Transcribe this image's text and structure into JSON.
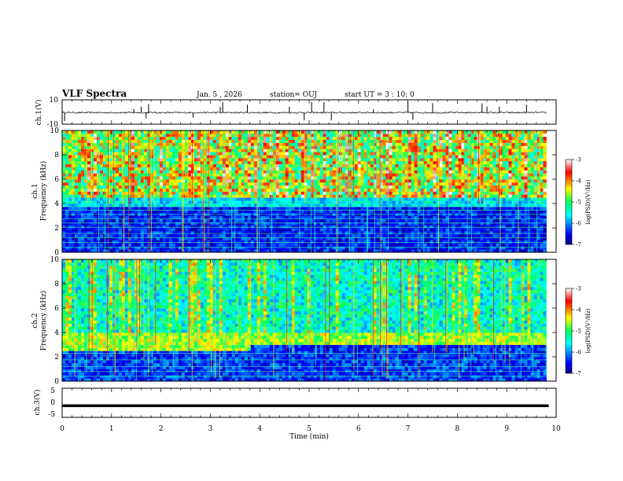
{
  "header": {
    "title": "VLF Spectra",
    "date": "Jan. 5 , 2026",
    "station": "station= OUJ",
    "start": "start UT = 3 : 10: 0"
  },
  "chart_data": [
    {
      "type": "line",
      "panel": "ch1-waveform",
      "ylabel": "ch.1(V)",
      "ylim": [
        -10,
        10
      ],
      "yticks": [
        "10",
        "-10"
      ],
      "xlim": [
        0,
        10
      ],
      "baseline": -0.5,
      "noise_amplitude": 0.6,
      "spike_times_min": [
        0.05,
        1.45,
        1.6,
        1.7,
        1.75,
        2.65,
        3.2,
        3.25,
        3.75,
        4.6,
        4.9,
        5.05,
        5.3,
        5.45,
        6.3,
        7.0,
        7.1,
        7.5,
        8.5,
        8.6,
        8.85,
        9.4
      ]
    },
    {
      "type": "heatmap",
      "panel": "ch1-spectrogram",
      "ylabel": "ch.1",
      "ylabel2": "Frequency (kHz)",
      "ylim": [
        0,
        10
      ],
      "yticks": [
        "0",
        "2",
        "4",
        "6",
        "8",
        "10"
      ],
      "xlim": [
        0,
        9.8
      ],
      "colorbar": {
        "label": "log(PSD)(V²/Hz)",
        "range": [
          -7,
          -3
        ],
        "ticks": [
          "-3",
          "-4",
          "-5",
          "-6",
          "-7"
        ]
      },
      "high_band_start_khz": 4.5,
      "hum_lines_khz": [
        0.4,
        0.8,
        1.2,
        1.55,
        2.05,
        2.4,
        2.75,
        3.1,
        3.45,
        3.75
      ]
    },
    {
      "type": "heatmap",
      "panel": "ch2-spectrogram",
      "ylabel": "ch.2",
      "ylabel2": "Frequency (kHz)",
      "ylim": [
        0,
        10
      ],
      "yticks": [
        "0",
        "2",
        "4",
        "6",
        "8",
        "10"
      ],
      "xlim": [
        0,
        9.8
      ],
      "colorbar": {
        "label": "log(PSD)(V²/Hz)",
        "range": [
          -7,
          -3
        ],
        "ticks": [
          "-3",
          "-4",
          "-5",
          "-6",
          "-7"
        ]
      },
      "hiss_band_khz_before": [
        2.4,
        3.9
      ],
      "hiss_band_khz_after": [
        2.9,
        3.9
      ],
      "hiss_change_time_min": 3.8,
      "hum_lines_khz": [
        0.4,
        0.8,
        1.2,
        1.75,
        2.3
      ]
    },
    {
      "type": "line",
      "panel": "ch3-waveform",
      "ylabel": "ch.3(V)",
      "ylim": [
        -5,
        5
      ],
      "yticks": [
        "5",
        "0",
        "-5"
      ],
      "xlim": [
        0,
        9.85
      ],
      "level": -1.0,
      "xlabel": "Time (min)",
      "xticks": [
        "0",
        "1",
        "2",
        "3",
        "4",
        "5",
        "6",
        "7",
        "8",
        "9",
        "10"
      ]
    }
  ]
}
